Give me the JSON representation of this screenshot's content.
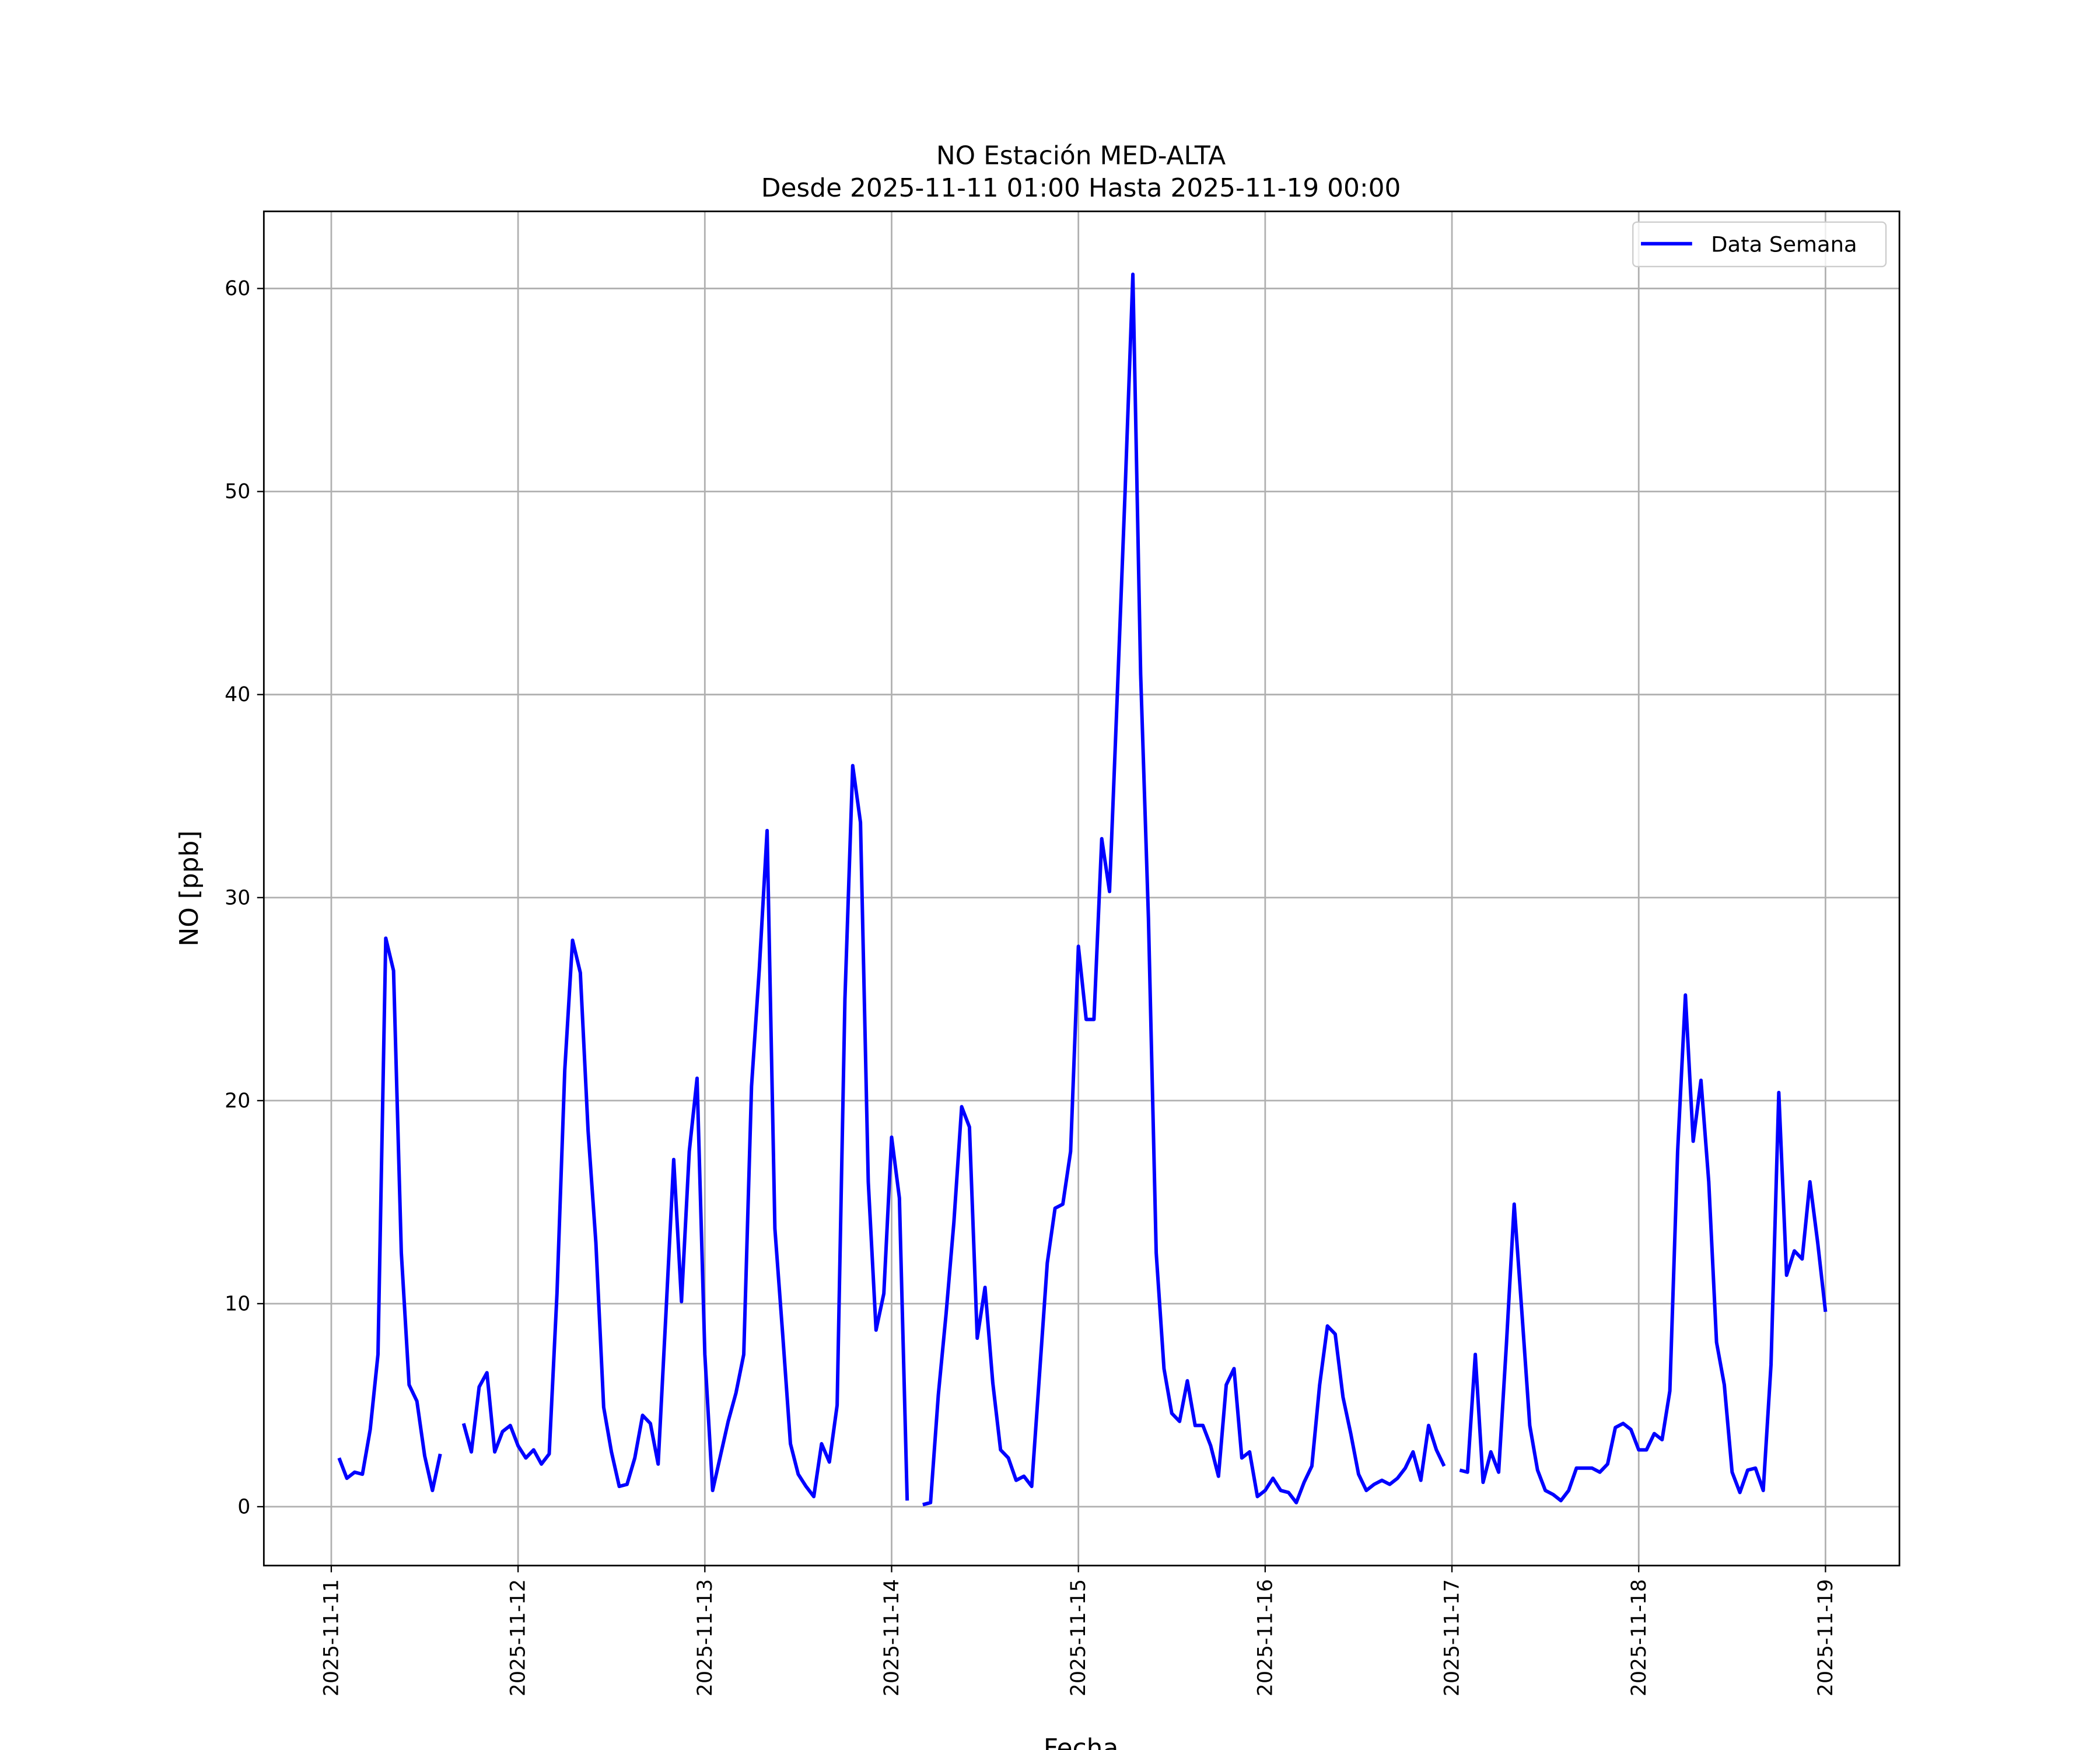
{
  "chart_data": {
    "type": "line",
    "title": "NO Estación MED-ALTA",
    "subtitle": "Desde 2025-11-11 01:00 Hasta 2025-11-19 00:00",
    "x_label": "Fecha",
    "y_label": "NO [ppb]",
    "legend": "upper right",
    "grid": true,
    "xlim": [
      "2025-11-10 15:20",
      "2025-11-19 09:30"
    ],
    "xticks": [
      "2025-11-11",
      "2025-11-12",
      "2025-11-13",
      "2025-11-14",
      "2025-11-15",
      "2025-11-16",
      "2025-11-17",
      "2025-11-18",
      "2025-11-19"
    ],
    "ylim": [
      -2.9,
      63.8
    ],
    "yticks": [
      0,
      10,
      20,
      30,
      40,
      50,
      60
    ],
    "x": [
      "2025-11-11 01:00",
      "2025-11-11 02:00",
      "2025-11-11 03:00",
      "2025-11-11 04:00",
      "2025-11-11 05:00",
      "2025-11-11 06:00",
      "2025-11-11 07:00",
      "2025-11-11 08:00",
      "2025-11-11 09:00",
      "2025-11-11 10:00",
      "2025-11-11 11:00",
      "2025-11-11 12:00",
      "2025-11-11 13:00",
      "2025-11-11 14:00",
      "2025-11-11 15:00",
      "2025-11-11 16:00",
      "2025-11-11 17:00",
      "2025-11-11 18:00",
      "2025-11-11 19:00",
      "2025-11-11 20:00",
      "2025-11-11 21:00",
      "2025-11-11 22:00",
      "2025-11-11 23:00",
      "2025-11-12 00:00",
      "2025-11-12 01:00",
      "2025-11-12 02:00",
      "2025-11-12 03:00",
      "2025-11-12 04:00",
      "2025-11-12 05:00",
      "2025-11-12 06:00",
      "2025-11-12 07:00",
      "2025-11-12 08:00",
      "2025-11-12 09:00",
      "2025-11-12 10:00",
      "2025-11-12 11:00",
      "2025-11-12 12:00",
      "2025-11-12 13:00",
      "2025-11-12 14:00",
      "2025-11-12 15:00",
      "2025-11-12 16:00",
      "2025-11-12 17:00",
      "2025-11-12 18:00",
      "2025-11-12 19:00",
      "2025-11-12 20:00",
      "2025-11-12 21:00",
      "2025-11-12 22:00",
      "2025-11-12 23:00",
      "2025-11-13 00:00",
      "2025-11-13 01:00",
      "2025-11-13 02:00",
      "2025-11-13 03:00",
      "2025-11-13 04:00",
      "2025-11-13 05:00",
      "2025-11-13 06:00",
      "2025-11-13 07:00",
      "2025-11-13 08:00",
      "2025-11-13 09:00",
      "2025-11-13 10:00",
      "2025-11-13 11:00",
      "2025-11-13 12:00",
      "2025-11-13 13:00",
      "2025-11-13 14:00",
      "2025-11-13 15:00",
      "2025-11-13 16:00",
      "2025-11-13 17:00",
      "2025-11-13 18:00",
      "2025-11-13 19:00",
      "2025-11-13 20:00",
      "2025-11-13 21:00",
      "2025-11-13 22:00",
      "2025-11-13 23:00",
      "2025-11-14 00:00",
      "2025-11-14 01:00",
      "2025-11-14 02:00",
      "2025-11-14 03:00",
      "2025-11-14 04:00",
      "2025-11-14 05:00",
      "2025-11-14 06:00",
      "2025-11-14 07:00",
      "2025-11-14 08:00",
      "2025-11-14 09:00",
      "2025-11-14 10:00",
      "2025-11-14 11:00",
      "2025-11-14 12:00",
      "2025-11-14 13:00",
      "2025-11-14 14:00",
      "2025-11-14 15:00",
      "2025-11-14 16:00",
      "2025-11-14 17:00",
      "2025-11-14 18:00",
      "2025-11-14 19:00",
      "2025-11-14 20:00",
      "2025-11-14 21:00",
      "2025-11-14 22:00",
      "2025-11-14 23:00",
      "2025-11-15 00:00",
      "2025-11-15 01:00",
      "2025-11-15 02:00",
      "2025-11-15 03:00",
      "2025-11-15 04:00",
      "2025-11-15 05:00",
      "2025-11-15 06:00",
      "2025-11-15 07:00",
      "2025-11-15 08:00",
      "2025-11-15 09:00",
      "2025-11-15 10:00",
      "2025-11-15 11:00",
      "2025-11-15 12:00",
      "2025-11-15 13:00",
      "2025-11-15 14:00",
      "2025-11-15 15:00",
      "2025-11-15 16:00",
      "2025-11-15 17:00",
      "2025-11-15 18:00",
      "2025-11-15 19:00",
      "2025-11-15 20:00",
      "2025-11-15 21:00",
      "2025-11-15 22:00",
      "2025-11-15 23:00",
      "2025-11-16 00:00",
      "2025-11-16 01:00",
      "2025-11-16 02:00",
      "2025-11-16 03:00",
      "2025-11-16 04:00",
      "2025-11-16 05:00",
      "2025-11-16 06:00",
      "2025-11-16 07:00",
      "2025-11-16 08:00",
      "2025-11-16 09:00",
      "2025-11-16 10:00",
      "2025-11-16 11:00",
      "2025-11-16 12:00",
      "2025-11-16 13:00",
      "2025-11-16 14:00",
      "2025-11-16 15:00",
      "2025-11-16 16:00",
      "2025-11-16 17:00",
      "2025-11-16 18:00",
      "2025-11-16 19:00",
      "2025-11-16 20:00",
      "2025-11-16 21:00",
      "2025-11-16 22:00",
      "2025-11-16 23:00",
      "2025-11-17 00:00",
      "2025-11-17 01:00",
      "2025-11-17 02:00",
      "2025-11-17 03:00",
      "2025-11-17 04:00",
      "2025-11-17 05:00",
      "2025-11-17 06:00",
      "2025-11-17 07:00",
      "2025-11-17 08:00",
      "2025-11-17 09:00",
      "2025-11-17 10:00",
      "2025-11-17 11:00",
      "2025-11-17 12:00",
      "2025-11-17 13:00",
      "2025-11-17 14:00",
      "2025-11-17 15:00",
      "2025-11-17 16:00",
      "2025-11-17 17:00",
      "2025-11-17 18:00",
      "2025-11-17 19:00",
      "2025-11-17 20:00",
      "2025-11-17 21:00",
      "2025-11-17 22:00",
      "2025-11-17 23:00",
      "2025-11-18 00:00",
      "2025-11-18 01:00",
      "2025-11-18 02:00",
      "2025-11-18 03:00",
      "2025-11-18 04:00",
      "2025-11-18 05:00",
      "2025-11-18 06:00",
      "2025-11-18 07:00",
      "2025-11-18 08:00",
      "2025-11-18 09:00",
      "2025-11-18 10:00",
      "2025-11-18 11:00",
      "2025-11-18 12:00",
      "2025-11-18 13:00",
      "2025-11-18 14:00",
      "2025-11-18 15:00",
      "2025-11-18 16:00",
      "2025-11-18 17:00",
      "2025-11-18 18:00",
      "2025-11-18 19:00",
      "2025-11-18 20:00",
      "2025-11-18 21:00",
      "2025-11-18 22:00",
      "2025-11-18 23:00",
      "2025-11-19 00:00"
    ],
    "series": [
      {
        "name": "Data Semana",
        "color": "#0000ff",
        "values": [
          2.4,
          1.4,
          1.7,
          1.6,
          3.8,
          7.5,
          28,
          26.4,
          12.5,
          6,
          5.2,
          2.5,
          0.8,
          2.6,
          null,
          null,
          4.1,
          2.7,
          5.9,
          6.6,
          2.7,
          3.7,
          4,
          3,
          2.4,
          2.8,
          2.1,
          2.6,
          10.5,
          21.5,
          27.9,
          26.3,
          18.5,
          13,
          4.9,
          2.7,
          1,
          1.1,
          2.4,
          4.5,
          4.1,
          2.1,
          9.5,
          17.1,
          10.1,
          17.5,
          21.1,
          7.5,
          0.8,
          2.5,
          4.2,
          5.6,
          7.5,
          20.7,
          26.5,
          33.3,
          13.7,
          8.5,
          3.1,
          1.6,
          1,
          0.5,
          3.1,
          2.2,
          5,
          25,
          36.5,
          33.7,
          16,
          8.7,
          10.5,
          18.2,
          15.2,
          0.3,
          null,
          0.1,
          0.2,
          5.5,
          9.5,
          14,
          19.7,
          18.7,
          8.3,
          10.8,
          6.1,
          2.8,
          2.4,
          1.3,
          1.5,
          1,
          6.5,
          12,
          14.7,
          14.9,
          17.5,
          27.6,
          24,
          24,
          32.9,
          30.3,
          40,
          50,
          60.7,
          41,
          29,
          12.5,
          6.8,
          4.6,
          4.2,
          6.2,
          4,
          4,
          3,
          1.5,
          6,
          6.8,
          2.4,
          2.7,
          0.5,
          0.8,
          1.4,
          0.8,
          0.7,
          0.2,
          1.2,
          2,
          6,
          8.9,
          8.5,
          5.4,
          3.6,
          1.6,
          0.8,
          1.1,
          1.3,
          1.1,
          1.4,
          1.9,
          2.7,
          1.3,
          4,
          2.8,
          2,
          null,
          1.8,
          1.7,
          7.5,
          1.2,
          2.7,
          1.7,
          8,
          14.9,
          9.5,
          4,
          1.8,
          0.8,
          0.6,
          0.3,
          0.8,
          1.9,
          1.9,
          1.9,
          1.7,
          2.1,
          3.9,
          4.1,
          3.8,
          2.8,
          2.8,
          3.6,
          3.3,
          5.7,
          17.5,
          25.2,
          18,
          21,
          16,
          8.1,
          6,
          1.7,
          0.7,
          1.8,
          1.9,
          0.8,
          7,
          20.4,
          11.4,
          12.6,
          12.2,
          16,
          13,
          9.6
        ]
      }
    ]
  }
}
